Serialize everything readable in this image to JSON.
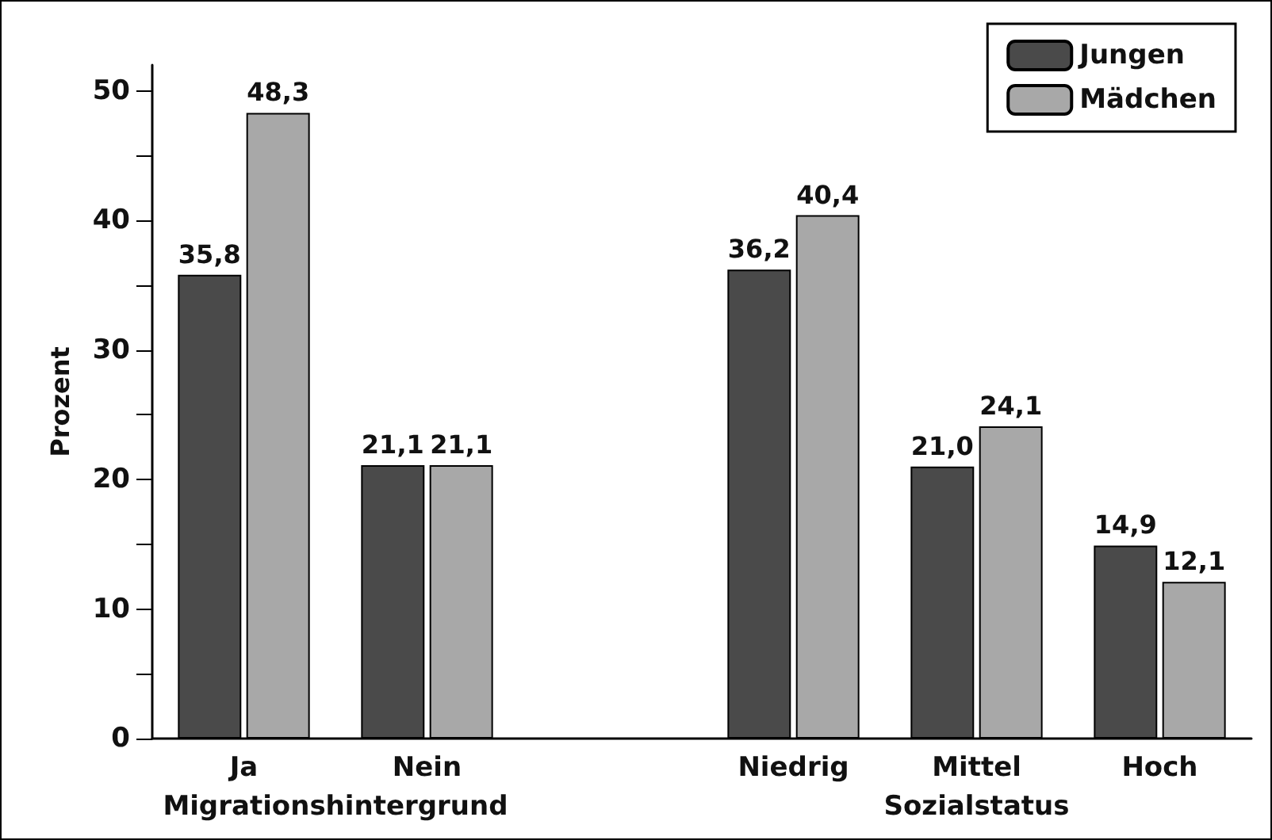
{
  "chart_data": {
    "type": "bar",
    "ylabel": "Prozent",
    "categories": [
      "Ja",
      "Nein",
      null,
      "Niedrig",
      "Mittel",
      "Hoch"
    ],
    "series": [
      {
        "name": "Jungen",
        "color": "#4a4a4a",
        "values": [
          35.8,
          21.1,
          null,
          36.2,
          21.0,
          14.9
        ],
        "value_labels": [
          "35,8",
          "21,1",
          null,
          "36,2",
          "21,0",
          "14,9"
        ]
      },
      {
        "name": "Mädchen",
        "color": "#a8a8a8",
        "values": [
          48.3,
          21.1,
          null,
          40.4,
          24.1,
          12.1
        ],
        "value_labels": [
          "48,3",
          "21,1",
          null,
          "40,4",
          "24,1",
          "12,1"
        ]
      }
    ],
    "ylim": [
      0,
      52
    ],
    "yticks": [
      0,
      {
        "value": 5,
        "label": null
      },
      10,
      {
        "value": 15,
        "label": null
      },
      20,
      {
        "value": 25,
        "label": null
      },
      30,
      {
        "value": 35,
        "label": null
      },
      40,
      {
        "value": 45,
        "label": null
      },
      50
    ],
    "annotations": [
      "Migrationshintergrund",
      "Sozialstatus"
    ],
    "grid": false,
    "legend": "top right"
  }
}
